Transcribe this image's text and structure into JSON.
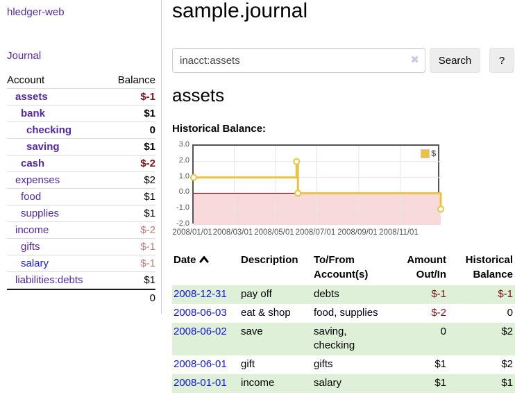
{
  "app": {
    "brand": "hledger-web"
  },
  "sidebar": {
    "journal_label": "Journal",
    "table": {
      "account_header": "Account",
      "balance_header": "Balance"
    },
    "accounts": [
      {
        "name": "assets",
        "balance": "$-1"
      },
      {
        "name": "bank",
        "balance": "$1"
      },
      {
        "name": "checking",
        "balance": "0"
      },
      {
        "name": "saving",
        "balance": "$1"
      },
      {
        "name": "cash",
        "balance": "$-2"
      },
      {
        "name": "expenses",
        "balance": "$2"
      },
      {
        "name": "food",
        "balance": "$1"
      },
      {
        "name": "supplies",
        "balance": "$1"
      },
      {
        "name": "income",
        "balance": "$-2"
      },
      {
        "name": "gifts",
        "balance": "$-1"
      },
      {
        "name": "salary",
        "balance": "$-1"
      },
      {
        "name": "liabilities:debts",
        "balance": "$1"
      }
    ],
    "total": "0"
  },
  "header": {
    "title": "sample.journal"
  },
  "search": {
    "value": "inacct:assets",
    "clear_icon": "✖",
    "button_label": "Search",
    "help_label": "?"
  },
  "main": {
    "account_title": "assets",
    "chart_label": "Historical Balance:"
  },
  "chart_data": {
    "type": "line",
    "title": "Historical Balance",
    "xlim": [
      "2008-01-01",
      "2008-12-31"
    ],
    "ylim": [
      -2,
      3
    ],
    "grid": true,
    "y_ticks": [
      {
        "v": 3,
        "label": "3.0"
      },
      {
        "v": 2,
        "label": "2.0"
      },
      {
        "v": 1,
        "label": "1.0"
      },
      {
        "v": 0,
        "label": "0.0"
      },
      {
        "v": -1,
        "label": "-1.0"
      },
      {
        "v": -2,
        "label": "-2.0"
      }
    ],
    "x_ticks": [
      {
        "date": "2008-01-01",
        "label": "2008/01/01"
      },
      {
        "date": "2008-03-01",
        "label": "2008/03/01"
      },
      {
        "date": "2008-05-01",
        "label": "2008/05/01"
      },
      {
        "date": "2008-07-01",
        "label": "2008/07/01"
      },
      {
        "date": "2008-09-01",
        "label": "2008/09/01"
      },
      {
        "date": "2008-11-01",
        "label": "2008/11/01"
      }
    ],
    "series": [
      {
        "name": "$",
        "color": "#edc240",
        "step": true,
        "points": [
          [
            "2008-01-01",
            1
          ],
          [
            "2008-06-01",
            2
          ],
          [
            "2008-06-03",
            0
          ],
          [
            "2008-12-31",
            -1
          ]
        ],
        "line_path": [
          [
            "2008-01-01",
            1
          ],
          [
            "2008-06-01",
            1
          ],
          [
            "2008-06-01",
            2
          ],
          [
            "2008-06-03",
            2
          ],
          [
            "2008-06-03",
            0
          ],
          [
            "2008-12-31",
            0
          ],
          [
            "2008-12-31",
            -1
          ]
        ]
      }
    ],
    "legend": {
      "label": "$",
      "position": "top-right"
    },
    "zero_line_color": "#8b0000",
    "negative_region_color": "#f9dada",
    "gridline_color": "#e6e6e6"
  },
  "register": {
    "headers": {
      "date": "Date",
      "description": "Description",
      "tofrom_line1": "To/From",
      "tofrom_line2": "Account(s)",
      "amount_line1": "Amount",
      "amount_line2": "Out/In",
      "balance_line1": "Historical",
      "balance_line2": "Balance"
    },
    "rows": [
      {
        "date": "2008-12-31",
        "description": "pay off",
        "accounts": "debts",
        "amount": "$-1",
        "balance": "$-1"
      },
      {
        "date": "2008-06-03",
        "description": "eat & shop",
        "accounts": "food, supplies",
        "amount": "$-2",
        "balance": "0"
      },
      {
        "date": "2008-06-02",
        "description": "save",
        "accounts": "saving, checking",
        "amount": "0",
        "balance": "$2"
      },
      {
        "date": "2008-06-01",
        "description": "gift",
        "accounts": "gifts",
        "amount": "$1",
        "balance": "$2"
      },
      {
        "date": "2008-01-01",
        "description": "income",
        "accounts": "salary",
        "amount": "$1",
        "balance": "$1"
      }
    ]
  },
  "palette": {
    "link_purple": "#5229a3",
    "link_blue": "#1414dd",
    "negative_strong": "#7c1212",
    "negative_soft": "#c07878",
    "row_green": "#dff0d8",
    "series_gold": "#edc240"
  }
}
